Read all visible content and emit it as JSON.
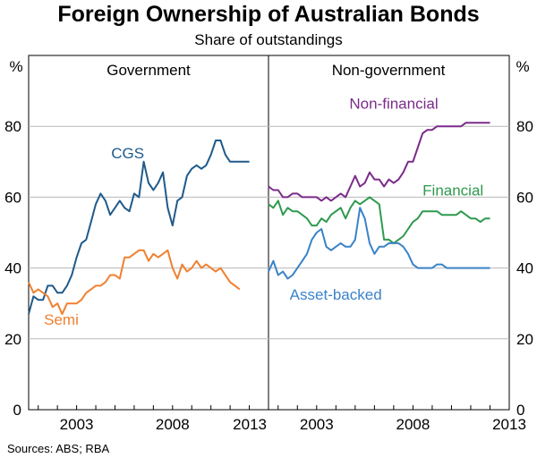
{
  "chart_data": {
    "type": "line",
    "title": "Foreign Ownership of Australian Bonds",
    "subtitle": "Share of outstandings",
    "y_unit_left": "%",
    "y_unit_right": "%",
    "ylim": [
      0,
      100
    ],
    "yticks": [
      "0",
      "20",
      "40",
      "60",
      "80"
    ],
    "x_range": [
      2000.5,
      2013.0
    ],
    "xticks": [
      "2003",
      "2008",
      "2013"
    ],
    "source": "Sources: ABS; RBA",
    "panels": [
      {
        "title": "Government",
        "series": [
          {
            "name": "CGS",
            "color": "#1f5a8a",
            "label_pos": [
              2004.8,
              71
            ],
            "x": [
              2000.5,
              2000.75,
              2001.0,
              2001.25,
              2001.5,
              2001.75,
              2002.0,
              2002.25,
              2002.5,
              2002.75,
              2003.0,
              2003.25,
              2003.5,
              2003.75,
              2004.0,
              2004.25,
              2004.5,
              2004.75,
              2005.0,
              2005.25,
              2005.5,
              2005.75,
              2006.0,
              2006.25,
              2006.5,
              2006.75,
              2007.0,
              2007.25,
              2007.5,
              2007.75,
              2008.0,
              2008.25,
              2008.5,
              2008.75,
              2009.0,
              2009.25,
              2009.5,
              2009.75,
              2010.0,
              2010.25,
              2010.5,
              2010.75,
              2011.0,
              2011.25,
              2011.5,
              2011.75,
              2012.0
            ],
            "values": [
              27,
              32,
              31,
              31,
              35,
              35,
              33,
              33,
              35,
              38,
              43,
              47,
              48,
              53,
              58,
              61,
              59,
              55,
              57,
              59,
              57,
              56,
              61,
              60,
              70,
              64,
              62,
              64,
              67,
              57,
              52,
              59,
              60,
              66,
              68,
              69,
              68,
              69,
              72,
              76,
              76,
              72,
              70,
              70,
              70,
              70,
              70
            ]
          },
          {
            "name": "Semi",
            "color": "#f08030",
            "label_pos": [
              2001.3,
              24
            ],
            "x": [
              2000.5,
              2000.75,
              2001.0,
              2001.25,
              2001.5,
              2001.75,
              2002.0,
              2002.25,
              2002.5,
              2002.75,
              2003.0,
              2003.25,
              2003.5,
              2003.75,
              2004.0,
              2004.25,
              2004.5,
              2004.75,
              2005.0,
              2005.25,
              2005.5,
              2005.75,
              2006.0,
              2006.25,
              2006.5,
              2006.75,
              2007.0,
              2007.25,
              2007.5,
              2007.75,
              2008.0,
              2008.25,
              2008.5,
              2008.75,
              2009.0,
              2009.25,
              2009.5,
              2009.75,
              2010.0,
              2010.25,
              2010.5,
              2010.75,
              2011.0,
              2011.25,
              2011.5
            ],
            "values": [
              36,
              33,
              34,
              33,
              32,
              29,
              30,
              27,
              30,
              30,
              30,
              31,
              33,
              34,
              35,
              35,
              36,
              38,
              38,
              37,
              43,
              43,
              44,
              45,
              45,
              42,
              44,
              43,
              44,
              45,
              40,
              37,
              41,
              39,
              40,
              42,
              40,
              41,
              40,
              39,
              40,
              38,
              36,
              35,
              34
            ]
          }
        ]
      },
      {
        "title": "Non-government",
        "series": [
          {
            "name": "Non-financial",
            "color": "#7b2b8a",
            "label_pos": [
              2004.7,
              85
            ],
            "x": [
              2000.5,
              2000.75,
              2001.0,
              2001.25,
              2001.5,
              2001.75,
              2002.0,
              2002.25,
              2002.5,
              2002.75,
              2003.0,
              2003.25,
              2003.5,
              2003.75,
              2004.0,
              2004.25,
              2004.5,
              2004.75,
              2005.0,
              2005.25,
              2005.5,
              2005.75,
              2006.0,
              2006.25,
              2006.5,
              2006.75,
              2007.0,
              2007.25,
              2007.5,
              2007.75,
              2008.0,
              2008.25,
              2008.5,
              2008.75,
              2009.0,
              2009.25,
              2009.5,
              2009.75,
              2010.0,
              2010.25,
              2010.5,
              2010.75,
              2011.0,
              2011.25,
              2011.5,
              2011.75,
              2012.0
            ],
            "values": [
              63,
              62,
              62,
              60,
              60,
              61,
              61,
              60,
              60,
              60,
              60,
              59,
              60,
              59,
              60,
              61,
              60,
              63,
              66,
              63,
              64,
              67,
              65,
              65,
              63,
              65,
              64,
              65,
              67,
              70,
              70,
              74,
              78,
              79,
              79,
              80,
              80,
              80,
              80,
              80,
              80,
              81,
              81,
              81,
              81,
              81,
              81
            ]
          },
          {
            "name": "Financial",
            "color": "#2e9a4e",
            "label_pos": [
              2008.5,
              60.5
            ],
            "x": [
              2000.5,
              2000.75,
              2001.0,
              2001.25,
              2001.5,
              2001.75,
              2002.0,
              2002.25,
              2002.5,
              2002.75,
              2003.0,
              2003.25,
              2003.5,
              2003.75,
              2004.0,
              2004.25,
              2004.5,
              2004.75,
              2005.0,
              2005.25,
              2005.5,
              2005.75,
              2006.0,
              2006.25,
              2006.5,
              2006.75,
              2007.0,
              2007.25,
              2007.5,
              2007.75,
              2008.0,
              2008.25,
              2008.5,
              2008.75,
              2009.0,
              2009.25,
              2009.5,
              2009.75,
              2010.0,
              2010.25,
              2010.5,
              2010.75,
              2011.0,
              2011.25,
              2011.5,
              2011.75,
              2012.0
            ],
            "values": [
              58,
              57,
              59,
              55,
              57,
              56,
              56,
              55,
              54,
              52,
              52,
              54,
              53,
              55,
              56,
              57,
              54,
              57,
              59,
              58,
              59,
              60,
              59,
              58,
              48,
              48,
              47,
              48,
              49,
              51,
              53,
              54,
              56,
              56,
              56,
              56,
              55,
              55,
              55,
              55,
              56,
              55,
              54,
              54,
              53,
              54,
              54
            ]
          },
          {
            "name": "Asset-backed",
            "color": "#3a83c8",
            "label_pos": [
              2001.6,
              31
            ],
            "x": [
              2000.5,
              2000.75,
              2001.0,
              2001.25,
              2001.5,
              2001.75,
              2002.0,
              2002.25,
              2002.5,
              2002.75,
              2003.0,
              2003.25,
              2003.5,
              2003.75,
              2004.0,
              2004.25,
              2004.5,
              2004.75,
              2005.0,
              2005.25,
              2005.5,
              2005.75,
              2006.0,
              2006.25,
              2006.5,
              2006.75,
              2007.0,
              2007.25,
              2007.5,
              2007.75,
              2008.0,
              2008.25,
              2008.5,
              2008.75,
              2009.0,
              2009.25,
              2009.5,
              2009.75,
              2010.0,
              2010.25,
              2010.5,
              2010.75,
              2011.0,
              2011.25,
              2011.5,
              2011.75,
              2012.0
            ],
            "values": [
              39,
              42,
              38,
              39,
              37,
              38,
              40,
              42,
              44,
              48,
              50,
              51,
              46,
              45,
              46,
              47,
              46,
              46,
              48,
              57,
              54,
              47,
              44,
              46,
              46,
              47,
              47,
              47,
              46,
              44,
              41,
              40,
              40,
              40,
              40,
              41,
              41,
              40,
              40,
              40,
              40,
              40,
              40,
              40,
              40,
              40,
              40
            ]
          }
        ]
      }
    ]
  }
}
